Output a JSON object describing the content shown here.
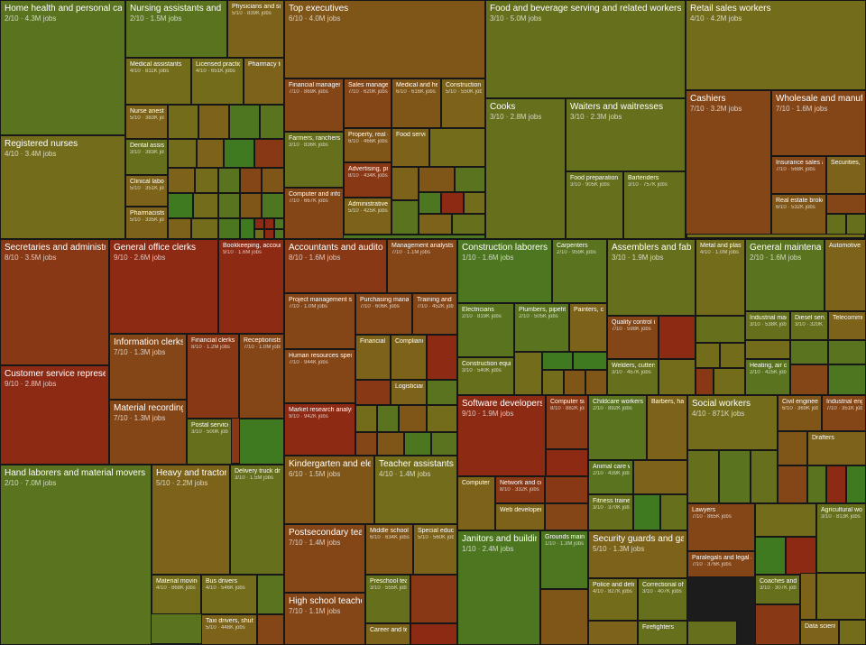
{
  "chart_data": {
    "type": "treemap",
    "title": "",
    "description_format": "score/10 · jobs",
    "color_scale": {
      "low": "#3f7a21",
      "mid": "#7a6a1a",
      "high": "#8c2a14"
    },
    "groups": [
      {
        "items": [
          {
            "name": "Home health and personal care aides",
            "score": 2,
            "jobs_label": "4.3M jobs"
          },
          {
            "name": "Registered nurses",
            "score": 4,
            "jobs_label": "3.4M jobs"
          },
          {
            "name": "Nursing assistants and orderlies",
            "score": 2,
            "jobs_label": "1.5M jobs"
          },
          {
            "name": "Physicians and surgeons",
            "score": 5,
            "jobs_label": "839K jobs"
          },
          {
            "name": "Medical assistants",
            "score": 4,
            "jobs_label": "811K jobs"
          },
          {
            "name": "Licensed practical nurses",
            "score": 4,
            "jobs_label": "651K jobs"
          },
          {
            "name": "Pharmacy technicians",
            "score": null,
            "jobs_label": ""
          },
          {
            "name": "Nurse anesthetists",
            "score": 5,
            "jobs_label": "383K jobs"
          },
          {
            "name": "Dental assistants",
            "score": 3,
            "jobs_label": "383K jobs"
          },
          {
            "name": "Clinical laboratory technologists",
            "score": 5,
            "jobs_label": "351K jobs"
          },
          {
            "name": "Pharmacists",
            "score": 5,
            "jobs_label": "335K jobs"
          }
        ]
      },
      {
        "items": [
          {
            "name": "Top executives",
            "score": 6,
            "jobs_label": "4.0M jobs"
          },
          {
            "name": "Financial managers",
            "score": 7,
            "jobs_label": "869K jobs"
          },
          {
            "name": "Sales managers",
            "score": 7,
            "jobs_label": "620K jobs"
          },
          {
            "name": "Medical and health services managers",
            "score": 6,
            "jobs_label": "616K jobs"
          },
          {
            "name": "Construction managers",
            "score": 5,
            "jobs_label": "550K jobs"
          },
          {
            "name": "Farmers, ranchers",
            "score": 3,
            "jobs_label": "836K jobs"
          },
          {
            "name": "Property, real estate managers",
            "score": 6,
            "jobs_label": "466K jobs"
          },
          {
            "name": "Food service managers",
            "score": null,
            "jobs_label": ""
          },
          {
            "name": "Advertising, promotions managers",
            "score": 8,
            "jobs_label": "434K jobs"
          },
          {
            "name": "Computer and information systems managers",
            "score": 7,
            "jobs_label": "667K jobs"
          },
          {
            "name": "Administrative services managers",
            "score": 5,
            "jobs_label": "425K jobs"
          }
        ]
      },
      {
        "items": [
          {
            "name": "Food and beverage serving and related workers",
            "score": 3,
            "jobs_label": "5.0M jobs"
          },
          {
            "name": "Cooks",
            "score": 3,
            "jobs_label": "2.8M jobs"
          },
          {
            "name": "Waiters and waitresses",
            "score": 3,
            "jobs_label": "2.3M jobs"
          },
          {
            "name": "Food preparation workers",
            "score": 3,
            "jobs_label": "905K jobs"
          },
          {
            "name": "Bartenders",
            "score": 3,
            "jobs_label": "757K jobs"
          }
        ]
      },
      {
        "items": [
          {
            "name": "Retail sales workers",
            "score": 4,
            "jobs_label": "4.2M jobs"
          },
          {
            "name": "Cashiers",
            "score": 7,
            "jobs_label": "3.2M jobs"
          },
          {
            "name": "Wholesale and manufacturing sales representatives",
            "score": 7,
            "jobs_label": "1.6M jobs"
          },
          {
            "name": "Insurance sales agents",
            "score": 7,
            "jobs_label": "568K jobs"
          },
          {
            "name": "Securities, commodities sales agents",
            "score": null,
            "jobs_label": ""
          },
          {
            "name": "Real estate brokers",
            "score": 6,
            "jobs_label": "532K jobs"
          }
        ]
      },
      {
        "items": [
          {
            "name": "Secretaries and administrative assistants",
            "score": 8,
            "jobs_label": "3.5M jobs"
          },
          {
            "name": "Customer service representatives",
            "score": 9,
            "jobs_label": "2.8M jobs"
          },
          {
            "name": "General office clerks",
            "score": 9,
            "jobs_label": "2.6M jobs"
          },
          {
            "name": "Bookkeeping, accounting clerks",
            "score": 9,
            "jobs_label": "1.6M jobs"
          },
          {
            "name": "Information clerks",
            "score": 7,
            "jobs_label": "1.3M jobs"
          },
          {
            "name": "Financial clerks",
            "score": 8,
            "jobs_label": "1.2M jobs"
          },
          {
            "name": "Receptionists",
            "score": 7,
            "jobs_label": "1.0M jobs"
          },
          {
            "name": "Material recording clerks",
            "score": 7,
            "jobs_label": "1.3M jobs"
          },
          {
            "name": "Postal service workers",
            "score": 3,
            "jobs_label": "500K jobs"
          }
        ]
      },
      {
        "items": [
          {
            "name": "Accountants and auditors",
            "score": 8,
            "jobs_label": "1.6M jobs"
          },
          {
            "name": "Management analysts",
            "score": 7,
            "jobs_label": "1.1M jobs"
          },
          {
            "name": "Project management specialists",
            "score": 7,
            "jobs_label": "1.0M jobs"
          },
          {
            "name": "Purchasing managers",
            "score": 7,
            "jobs_label": "606K jobs"
          },
          {
            "name": "Training and development specialists",
            "score": 7,
            "jobs_label": "452K jobs"
          },
          {
            "name": "Human resources specialists",
            "score": 7,
            "jobs_label": "944K jobs"
          },
          {
            "name": "Financial analysts",
            "score": null,
            "jobs_label": ""
          },
          {
            "name": "Compliance officers",
            "score": null,
            "jobs_label": ""
          },
          {
            "name": "Logisticians",
            "score": null,
            "jobs_label": ""
          },
          {
            "name": "Market research analysts",
            "score": 9,
            "jobs_label": "942K jobs"
          }
        ]
      },
      {
        "items": [
          {
            "name": "Construction laborers",
            "score": 1,
            "jobs_label": "1.6M jobs"
          },
          {
            "name": "Carpenters",
            "score": 2,
            "jobs_label": "959K jobs"
          },
          {
            "name": "Electricians",
            "score": 2,
            "jobs_label": "819K jobs"
          },
          {
            "name": "Plumbers, pipefitters",
            "score": 2,
            "jobs_label": "505K jobs"
          },
          {
            "name": "Painters, construction",
            "score": null,
            "jobs_label": ""
          },
          {
            "name": "Construction equipment operators",
            "score": 3,
            "jobs_label": "540K jobs"
          }
        ]
      },
      {
        "items": [
          {
            "name": "Assemblers and fabricators",
            "score": 3,
            "jobs_label": "1.9M jobs"
          },
          {
            "name": "Metal and plastic machine workers",
            "score": 4,
            "jobs_label": "1.0M jobs"
          },
          {
            "name": "Quality control inspectors",
            "score": 7,
            "jobs_label": "598K jobs"
          },
          {
            "name": "Welders, cutters",
            "score": 3,
            "jobs_label": "457K jobs"
          }
        ]
      },
      {
        "items": [
          {
            "name": "General maintenance and repair workers",
            "score": 2,
            "jobs_label": "1.6M jobs"
          },
          {
            "name": "Automotive technicians",
            "score": null,
            "jobs_label": ""
          },
          {
            "name": "Industrial machinery mechanics",
            "score": 3,
            "jobs_label": "538K jobs"
          },
          {
            "name": "Diesel service technicians",
            "score": 3,
            "jobs_label": "320K jobs"
          },
          {
            "name": "Telecommunications technicians",
            "score": null,
            "jobs_label": ""
          },
          {
            "name": "Heating, air conditioning mechanics",
            "score": 2,
            "jobs_label": "425K jobs"
          }
        ]
      },
      {
        "items": [
          {
            "name": "Hand laborers and material movers",
            "score": 2,
            "jobs_label": "7.0M jobs"
          },
          {
            "name": "Heavy and tractor-trailer truck drivers",
            "score": 5,
            "jobs_label": "2.2M jobs"
          },
          {
            "name": "Delivery truck drivers",
            "score": 3,
            "jobs_label": "1.5M jobs"
          },
          {
            "name": "Material moving machine operators",
            "score": 4,
            "jobs_label": "868K jobs"
          },
          {
            "name": "Bus drivers",
            "score": 4,
            "jobs_label": "546K jobs"
          },
          {
            "name": "Taxi drivers, shuttle drivers",
            "score": 5,
            "jobs_label": "448K jobs"
          }
        ]
      },
      {
        "items": [
          {
            "name": "Kindergarten and elementary school teachers",
            "score": 6,
            "jobs_label": "1.5M jobs"
          },
          {
            "name": "Teacher assistants",
            "score": 4,
            "jobs_label": "1.4M jobs"
          },
          {
            "name": "Postsecondary teachers",
            "score": 7,
            "jobs_label": "1.4M jobs"
          },
          {
            "name": "Middle school teachers",
            "score": 6,
            "jobs_label": "634K jobs"
          },
          {
            "name": "Special education teachers",
            "score": 5,
            "jobs_label": "560K jobs"
          },
          {
            "name": "Preschool teachers",
            "score": 3,
            "jobs_label": "555K jobs"
          },
          {
            "name": "High school teachers",
            "score": 7,
            "jobs_label": "1.1M jobs"
          },
          {
            "name": "Career and technical teachers",
            "score": null,
            "jobs_label": ""
          }
        ]
      },
      {
        "items": [
          {
            "name": "Software developers",
            "score": 9,
            "jobs_label": "1.9M jobs"
          },
          {
            "name": "Computer support specialists",
            "score": 8,
            "jobs_label": "882K jobs"
          },
          {
            "name": "Computer programmers",
            "score": null,
            "jobs_label": ""
          },
          {
            "name": "Network and computer systems administrators",
            "score": 8,
            "jobs_label": "332K jobs"
          },
          {
            "name": "Web developers",
            "score": null,
            "jobs_label": ""
          }
        ]
      },
      {
        "items": [
          {
            "name": "Janitors and building cleaners",
            "score": 1,
            "jobs_label": "2.4M jobs"
          },
          {
            "name": "Grounds maintenance workers",
            "score": 1,
            "jobs_label": "1.3M jobs"
          }
        ]
      },
      {
        "items": [
          {
            "name": "Childcare workers",
            "score": 2,
            "jobs_label": "892K jobs"
          },
          {
            "name": "Barbers, hairstylists",
            "score": null,
            "jobs_label": ""
          },
          {
            "name": "Animal care workers",
            "score": 2,
            "jobs_label": "439K jobs"
          },
          {
            "name": "Fitness trainers",
            "score": 3,
            "jobs_label": "370K jobs"
          }
        ]
      },
      {
        "items": [
          {
            "name": "Social workers",
            "score": 4,
            "jobs_label": "871K jobs"
          }
        ]
      },
      {
        "items": [
          {
            "name": "Civil engineers",
            "score": 6,
            "jobs_label": "369K jobs"
          },
          {
            "name": "Industrial engineers",
            "score": 7,
            "jobs_label": "351K jobs"
          },
          {
            "name": "Drafters",
            "score": null,
            "jobs_label": ""
          }
        ]
      },
      {
        "items": [
          {
            "name": "Security guards and gambling surveillance officers",
            "score": 5,
            "jobs_label": "1.3M jobs"
          },
          {
            "name": "Police and detectives",
            "score": 4,
            "jobs_label": "827K jobs"
          },
          {
            "name": "Correctional officers",
            "score": 3,
            "jobs_label": "407K jobs"
          },
          {
            "name": "Firefighters",
            "score": 3,
            "jobs_label": "345K jobs"
          }
        ]
      },
      {
        "items": [
          {
            "name": "Lawyers",
            "score": 7,
            "jobs_label": "865K jobs"
          },
          {
            "name": "Paralegals and legal assistants",
            "score": 7,
            "jobs_label": "376K jobs"
          }
        ]
      },
      {
        "items": [
          {
            "name": "Agricultural workers",
            "score": 3,
            "jobs_label": "813K jobs"
          },
          {
            "name": "Coaches and scouts",
            "score": 3,
            "jobs_label": "307K jobs"
          },
          {
            "name": "Data scientists",
            "score": null,
            "jobs_label": ""
          }
        ]
      }
    ]
  }
}
